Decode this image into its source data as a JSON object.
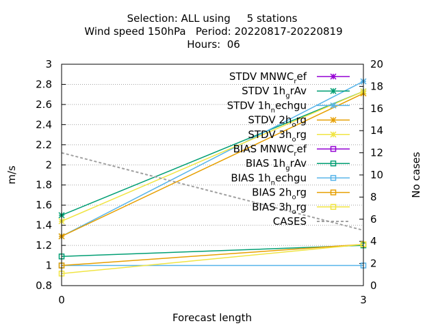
{
  "chart_data": {
    "type": "line",
    "title_lines": [
      "Selection: ALL using     5 stations",
      "Wind speed 150hPa   Period: 20220817-20220819",
      "Hours:  06"
    ],
    "xlabel": "Forecast length",
    "ylabel": "m/s",
    "y2label": "No cases",
    "x": [
      0,
      3
    ],
    "x_ticks": [
      "0",
      "3"
    ],
    "xlim": [
      0,
      3
    ],
    "ylim": [
      0.8,
      3
    ],
    "y_ticks": [
      "0.8",
      "1",
      "1.2",
      "1.4",
      "1.6",
      "1.8",
      "2",
      "2.2",
      "2.4",
      "2.6",
      "2.8",
      "3"
    ],
    "y2lim": [
      0,
      20
    ],
    "y2_ticks": [
      "0",
      "2",
      "4",
      "6",
      "8",
      "10",
      "12",
      "14",
      "16",
      "18",
      "20"
    ],
    "grid": true,
    "legend_position": "top-right",
    "series": [
      {
        "main": "STDV MNWC",
        "sub": "r",
        "tail": "ef",
        "color": "#9400d3",
        "marker": "x-star",
        "axis": "y1",
        "values": [
          null,
          null
        ]
      },
      {
        "main": "STDV 1h",
        "sub": "g",
        "tail": "rAv",
        "color": "#009e73",
        "marker": "x-star",
        "axis": "y1",
        "values": [
          1.5,
          2.73
        ]
      },
      {
        "main": "STDV 1h",
        "sub": "n",
        "tail": "echgu",
        "color": "#56b4e9",
        "marker": "x-star",
        "axis": "y1",
        "values": [
          1.29,
          2.83
        ]
      },
      {
        "main": "STDV 2h",
        "sub": "o",
        "tail": "rg",
        "color": "#e69f00",
        "marker": "x-star",
        "axis": "y1",
        "values": [
          1.29,
          2.71
        ]
      },
      {
        "main": "STDV 3h",
        "sub": "o",
        "tail": "rg",
        "color": "#f0e442",
        "marker": "x-star",
        "axis": "y1",
        "values": [
          1.44,
          2.73
        ]
      },
      {
        "main": "BIAS MNWC",
        "sub": "r",
        "tail": "ef",
        "color": "#9400d3",
        "marker": "square",
        "axis": "y1",
        "values": [
          null,
          null
        ]
      },
      {
        "main": "BIAS 1h",
        "sub": "g",
        "tail": "rAv",
        "color": "#009e73",
        "marker": "square",
        "axis": "y1",
        "values": [
          1.09,
          1.2
        ]
      },
      {
        "main": "BIAS 1h",
        "sub": "n",
        "tail": "echgu",
        "color": "#56b4e9",
        "marker": "square",
        "axis": "y1",
        "values": [
          1.0,
          1.0
        ]
      },
      {
        "main": "BIAS 2h",
        "sub": "o",
        "tail": "rg",
        "color": "#e69f00",
        "marker": "square",
        "axis": "y1",
        "values": [
          1.0,
          1.21
        ]
      },
      {
        "main": "BIAS 3h",
        "sub": "o",
        "tail": "rg",
        "color": "#f0e442",
        "marker": "square",
        "axis": "y1",
        "values": [
          0.92,
          1.21
        ]
      },
      {
        "main": "CASES",
        "sub": "",
        "tail": "",
        "color": "#a0a0a0",
        "marker": "none",
        "dashed": true,
        "axis": "y2",
        "values": [
          12,
          5
        ]
      }
    ]
  }
}
